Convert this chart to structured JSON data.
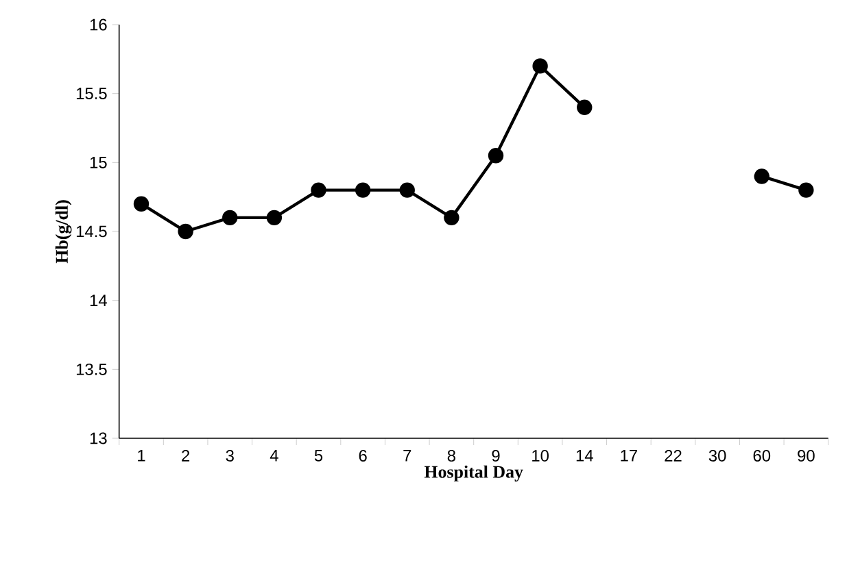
{
  "chart_data": {
    "type": "line",
    "xlabel": "Hospital Day",
    "ylabel": "Hb(g/dl)",
    "categories": [
      "1",
      "2",
      "3",
      "4",
      "5",
      "6",
      "7",
      "8",
      "9",
      "10",
      "14",
      "17",
      "22",
      "30",
      "60",
      "90"
    ],
    "values": [
      14.7,
      14.5,
      14.6,
      14.6,
      14.8,
      14.8,
      14.8,
      14.6,
      15.05,
      15.7,
      15.4,
      null,
      null,
      null,
      14.9,
      14.8
    ],
    "color": "#000000",
    "marker": "circle",
    "line_style": "solid",
    "ylim": [
      13,
      16
    ],
    "yticks": [
      13,
      13.5,
      14,
      14.5,
      15,
      15.5,
      16
    ]
  }
}
